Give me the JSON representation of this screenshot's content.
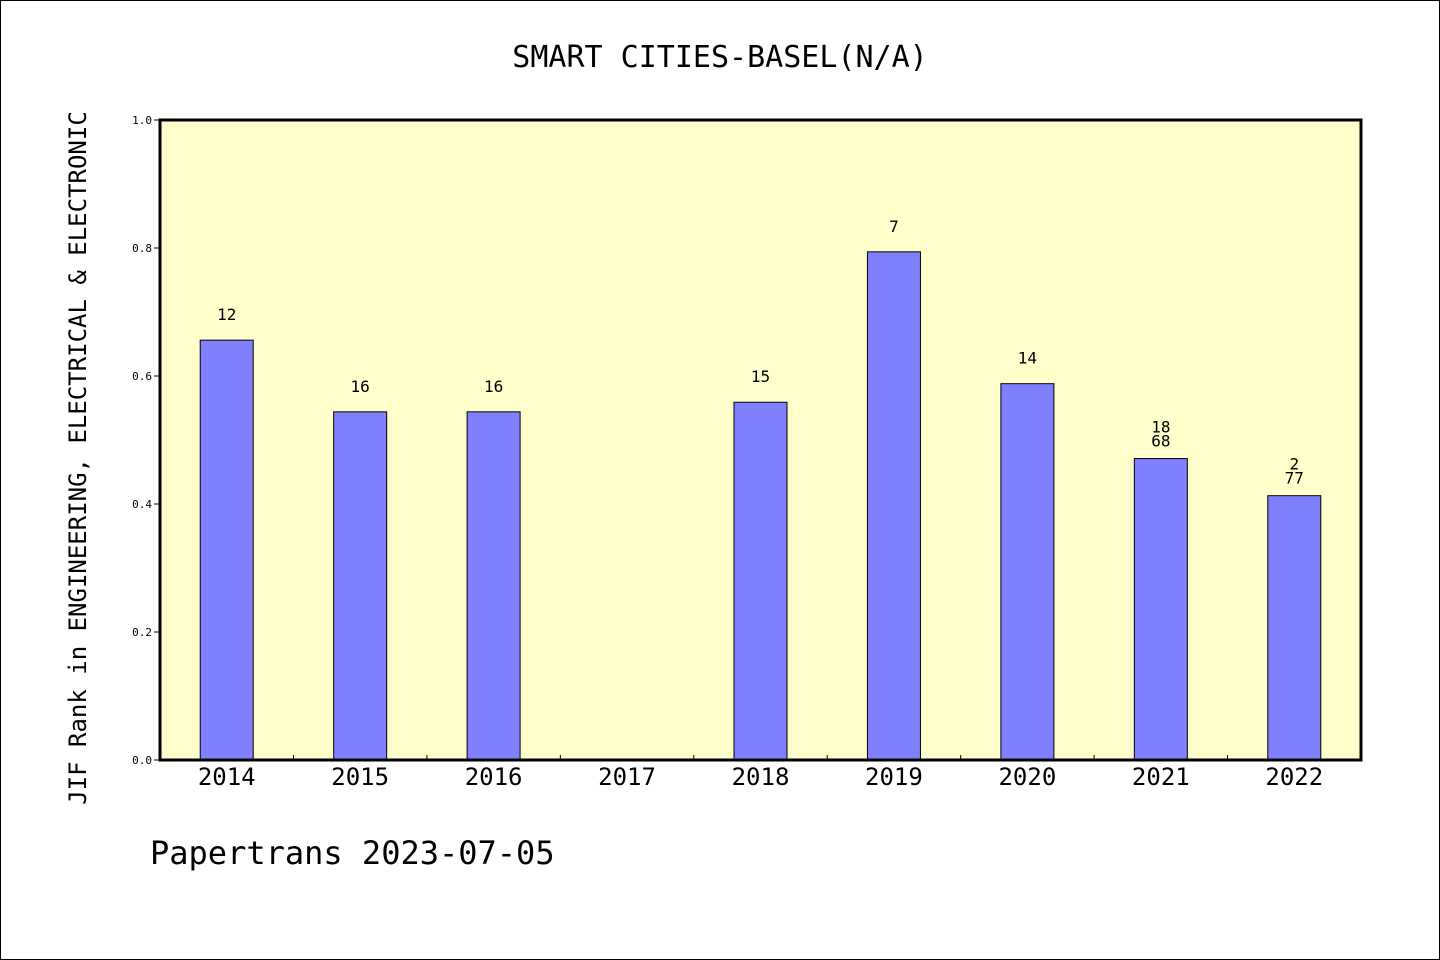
{
  "chart_data": {
    "type": "bar",
    "title": "SMART CITIES-BASEL(N/A)",
    "xlabel": "",
    "ylabel": "JIF Rank in ENGINEERING, ELECTRICAL & ELECTRONIC",
    "ylim": [
      0,
      1.0
    ],
    "yticks": [
      "0.0",
      "0.2",
      "0.4",
      "0.6",
      "0.8",
      "1.0"
    ],
    "categories": [
      "2014",
      "2015",
      "2016",
      "2017",
      "2018",
      "2019",
      "2020",
      "2021",
      "2022"
    ],
    "values": [
      0.656,
      0.544,
      0.544,
      null,
      0.559,
      0.794,
      0.588,
      0.471,
      0.413
    ],
    "data_labels": [
      [
        "12"
      ],
      [
        "16"
      ],
      [
        "16"
      ],
      [],
      [
        "15"
      ],
      [
        "7"
      ],
      [
        "14"
      ],
      [
        "18",
        "68"
      ],
      [
        "2",
        "77"
      ]
    ],
    "grid": false,
    "legend": "none",
    "plot_background": "#ffffcc",
    "bar_color": "#8080ff"
  },
  "footer": "Papertrans 2023-07-05"
}
